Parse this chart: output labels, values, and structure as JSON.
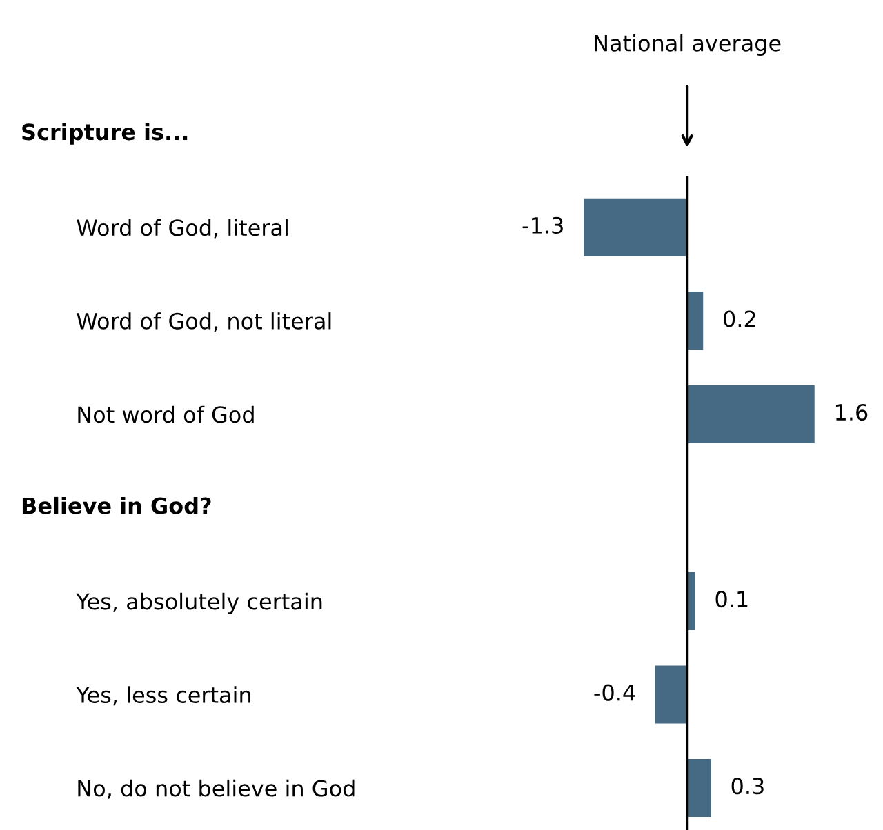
{
  "chart_data": {
    "type": "bar",
    "orientation": "horizontal",
    "categories": [
      null,
      "Word of God, literal",
      "Word of God, not literal",
      "Not word of God",
      null,
      "Yes, absolutely certain",
      "Yes, less certain",
      "No, do not believe in God"
    ],
    "values": [
      null,
      -1.3,
      0.2,
      1.6,
      null,
      0.1,
      -0.4,
      0.3
    ],
    "color": "#466a84",
    "data_labels": true,
    "annotations": [
      "Scripture is...",
      "Believe in God?"
    ],
    "ref_lines": [
      {
        "axis": "x",
        "value": 0,
        "label": "National average",
        "color": "#000000"
      }
    ],
    "legend": false
  }
}
